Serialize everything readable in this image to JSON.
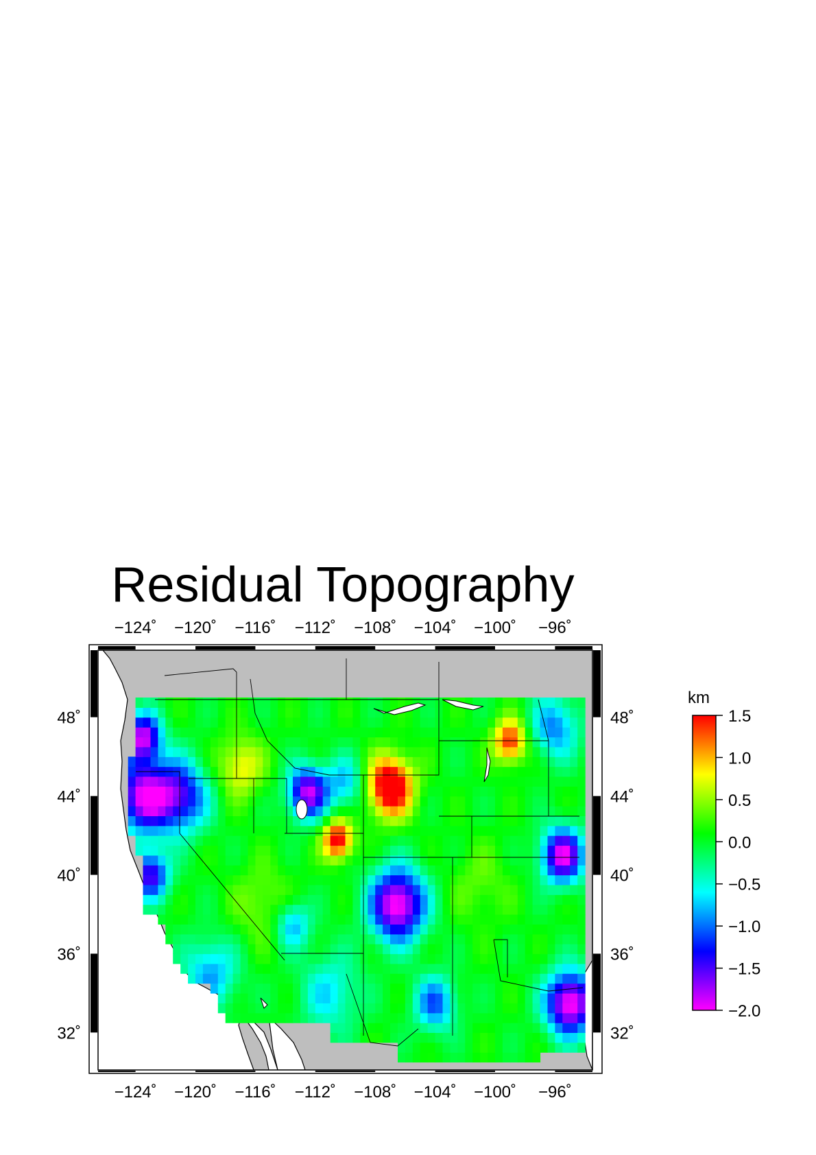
{
  "title": "Residual Topography",
  "colorbar": {
    "unit": "km",
    "labels": [
      "1.5",
      "1.0",
      "0.5",
      "0.0",
      "−0.5",
      "−1.0",
      "−1.5",
      "−2.0"
    ],
    "values": [
      1.5,
      1.0,
      0.5,
      0.0,
      -0.5,
      -1.0,
      -1.5,
      -2.0
    ],
    "range": [
      -2.0,
      1.5
    ],
    "colors": [
      "#ff00ff",
      "#8000ff",
      "#0000ff",
      "#0080ff",
      "#00ffff",
      "#00ff80",
      "#00ff00",
      "#80ff00",
      "#ffff00",
      "#ff8000",
      "#ff0000"
    ]
  },
  "axes": {
    "lon_labels": [
      "−124˚",
      "−120˚",
      "−116˚",
      "−112˚",
      "−108˚",
      "−104˚",
      "−100˚",
      "−96˚"
    ],
    "lon_values": [
      -124,
      -120,
      -116,
      -112,
      -108,
      -104,
      -100,
      -96
    ],
    "lat_labels": [
      "48˚",
      "44˚",
      "40˚",
      "36˚",
      "32˚"
    ],
    "lat_values": [
      48,
      44,
      40,
      36,
      32
    ],
    "lon_range": [
      -126.5,
      -93.5
    ],
    "lat_range": [
      30.1,
      51.4
    ]
  },
  "colors": {
    "land": "#bebebe",
    "ocean": "#ffffff",
    "frame": "#000000"
  }
}
